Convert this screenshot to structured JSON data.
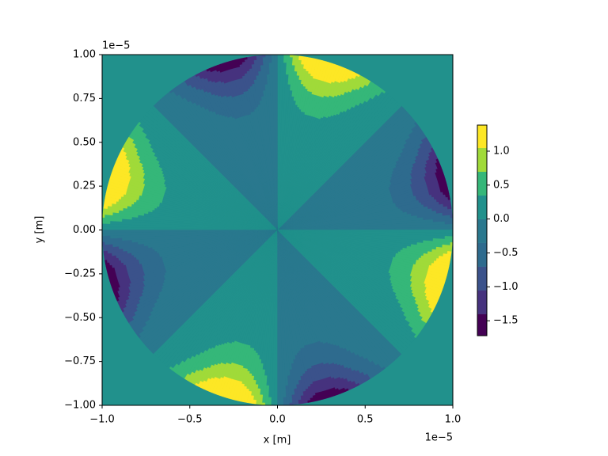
{
  "chart_data": {
    "type": "contourf",
    "xlabel": "x [m]",
    "ylabel": "y [m]",
    "x_offset_label": "1e−5",
    "y_offset_label": "1e−5",
    "xlim": [
      -1,
      1
    ],
    "ylim": [
      -1,
      1
    ],
    "xticks": [
      {
        "value": -1,
        "label": "−1.0"
      },
      {
        "value": -0.5,
        "label": "−0.5"
      },
      {
        "value": 0,
        "label": "0.0"
      },
      {
        "value": 0.5,
        "label": "0.5"
      },
      {
        "value": 1,
        "label": "1.0"
      }
    ],
    "yticks": [
      {
        "value": -1,
        "label": "−1.00"
      },
      {
        "value": -0.75,
        "label": "−0.75"
      },
      {
        "value": -0.5,
        "label": "−0.50"
      },
      {
        "value": -0.25,
        "label": "−0.25"
      },
      {
        "value": 0,
        "label": "0.00"
      },
      {
        "value": 0.25,
        "label": "0.25"
      },
      {
        "value": 0.5,
        "label": "0.50"
      },
      {
        "value": 0.75,
        "label": "0.75"
      },
      {
        "value": 1,
        "label": "1.00"
      }
    ],
    "levels": [
      -1.72,
      -1.4,
      -1.05,
      -0.7,
      -0.35,
      0,
      0.35,
      0.7,
      1.05,
      1.385
    ],
    "colors": [
      "#440154",
      "#46327e",
      "#3b528b",
      "#2e6b8e",
      "#2a788e",
      "#21918c",
      "#35b779",
      "#a0da39",
      "#fde725"
    ],
    "colorbar_ticks": [
      {
        "value": -1.5,
        "label": "−1.5"
      },
      {
        "value": -1,
        "label": "−1.0"
      },
      {
        "value": -0.5,
        "label": "−0.5"
      },
      {
        "value": 0,
        "label": "0.0"
      },
      {
        "value": 0.5,
        "label": "0.5"
      },
      {
        "value": 1,
        "label": "1.0"
      }
    ]
  }
}
